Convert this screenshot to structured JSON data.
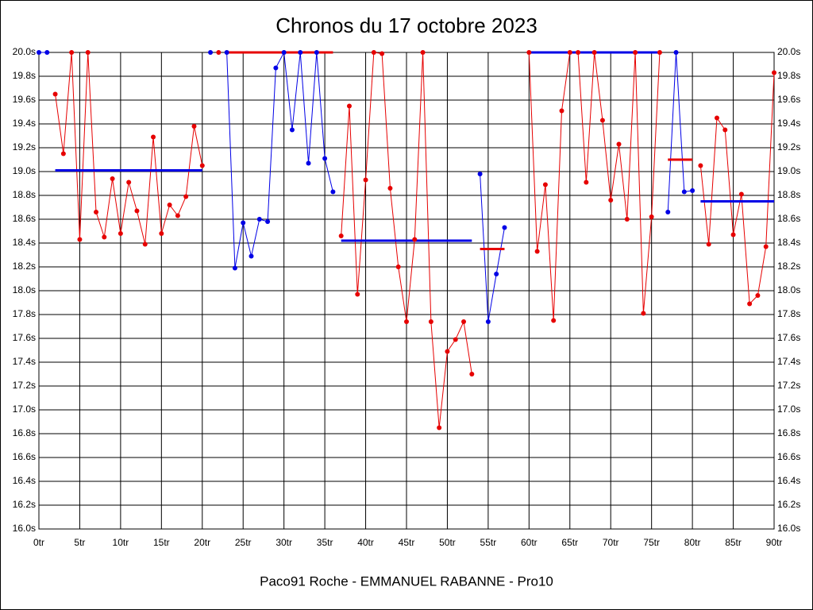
{
  "chart_data": {
    "type": "line",
    "title": "Chronos du 17 octobre 2023",
    "x_label": "Paco91 Roche - EMMANUEL RABANNE - Pro10",
    "x": [
      0,
      1,
      2,
      3,
      4,
      5,
      6,
      7,
      8,
      9,
      10,
      11,
      12,
      13,
      14,
      15,
      16,
      17,
      18,
      19,
      20,
      21,
      22,
      23,
      24,
      25,
      26,
      27,
      28,
      29,
      30,
      31,
      32,
      33,
      34,
      35,
      36,
      37,
      38,
      39,
      40,
      41,
      42,
      43,
      44,
      45,
      46,
      47,
      48,
      49,
      50,
      51,
      52,
      53,
      54,
      55,
      56,
      57,
      58,
      59,
      60,
      61,
      62,
      63,
      64,
      65,
      66,
      67,
      68,
      69,
      70,
      71,
      72,
      73,
      74,
      75,
      76,
      77,
      78,
      79,
      80,
      81,
      82,
      83,
      84,
      85,
      86,
      87,
      88,
      89,
      90
    ],
    "series": [
      {
        "color": "#0000e6",
        "values": [
          20,
          20,
          null,
          null,
          null,
          null,
          null,
          null,
          null,
          null,
          null,
          null,
          null,
          null,
          null,
          null,
          null,
          null,
          null,
          null,
          null,
          20,
          null,
          20,
          18.19,
          18.57,
          18.29,
          18.6,
          18.58,
          19.87,
          20,
          19.35,
          20,
          19.07,
          20,
          19.11,
          18.83,
          null,
          null,
          null,
          null,
          null,
          null,
          null,
          null,
          null,
          null,
          null,
          null,
          null,
          null,
          null,
          null,
          null,
          18.98,
          17.74,
          18.14,
          18.53,
          null,
          null,
          null,
          null,
          null,
          null,
          null,
          null,
          null,
          null,
          null,
          null,
          null,
          null,
          null,
          null,
          null,
          null,
          null,
          18.66,
          20,
          18.83,
          18.84,
          null,
          null,
          null,
          null,
          null,
          null,
          null,
          null,
          null,
          null
        ]
      },
      {
        "color": "#e60000",
        "values": [
          null,
          null,
          19.65,
          19.15,
          20,
          18.43,
          20,
          18.66,
          18.45,
          18.94,
          18.48,
          18.91,
          18.67,
          18.39,
          19.29,
          18.48,
          18.72,
          18.63,
          18.79,
          19.38,
          19.05,
          null,
          20,
          null,
          null,
          null,
          null,
          null,
          null,
          null,
          null,
          null,
          null,
          null,
          null,
          null,
          null,
          18.46,
          19.55,
          17.97,
          18.93,
          20,
          19.99,
          18.86,
          18.2,
          17.74,
          18.43,
          20,
          17.74,
          16.85,
          17.49,
          17.59,
          17.74,
          17.3,
          null,
          null,
          null,
          null,
          null,
          null,
          20,
          18.33,
          18.89,
          17.75,
          19.51,
          20,
          20,
          18.91,
          20,
          19.43,
          18.76,
          19.23,
          18.6,
          20,
          17.81,
          18.62,
          20,
          null,
          null,
          null,
          null,
          19.05,
          18.39,
          19.45,
          19.35,
          18.47,
          18.81,
          17.89,
          17.96,
          18.37,
          19.83
        ]
      }
    ],
    "averages": [
      {
        "start": 2,
        "end": 20,
        "value": 19.01,
        "color": "#0000e6"
      },
      {
        "start": 23,
        "end": 36,
        "value": 20,
        "color": "#e60000"
      },
      {
        "start": 37,
        "end": 53,
        "value": 18.42,
        "color": "#0000e6"
      },
      {
        "start": 54,
        "end": 57,
        "value": 18.35,
        "color": "#e60000"
      },
      {
        "start": 60,
        "end": 76,
        "value": 20,
        "color": "#0000e6"
      },
      {
        "start": 77,
        "end": 80,
        "value": 19.1,
        "color": "#e60000"
      },
      {
        "start": 81,
        "end": 90,
        "value": 18.75,
        "color": "#0000e6"
      }
    ],
    "xlim": [
      0,
      90
    ],
    "xticks": [
      {
        "value": 0,
        "label": "0tr"
      },
      {
        "value": 5,
        "label": "5tr"
      },
      {
        "value": 10,
        "label": "10tr"
      },
      {
        "value": 15,
        "label": "15tr"
      },
      {
        "value": 20,
        "label": "20tr"
      },
      {
        "value": 25,
        "label": "25tr"
      },
      {
        "value": 30,
        "label": "30tr"
      },
      {
        "value": 35,
        "label": "35tr"
      },
      {
        "value": 40,
        "label": "40tr"
      },
      {
        "value": 45,
        "label": "45tr"
      },
      {
        "value": 50,
        "label": "50tr"
      },
      {
        "value": 55,
        "label": "55tr"
      },
      {
        "value": 60,
        "label": "60tr"
      },
      {
        "value": 65,
        "label": "65tr"
      },
      {
        "value": 70,
        "label": "70tr"
      },
      {
        "value": 75,
        "label": "75tr"
      },
      {
        "value": 80,
        "label": "80tr"
      },
      {
        "value": 85,
        "label": "85tr"
      },
      {
        "value": 90,
        "label": "90tr"
      }
    ],
    "ylim": [
      16,
      20
    ],
    "yticks": [
      {
        "value": 16,
        "label": "16.0s"
      },
      {
        "value": 16.2,
        "label": "16.2s"
      },
      {
        "value": 16.4,
        "label": "16.4s"
      },
      {
        "value": 16.6,
        "label": "16.6s"
      },
      {
        "value": 16.8,
        "label": "16.8s"
      },
      {
        "value": 17,
        "label": "17.0s"
      },
      {
        "value": 17.2,
        "label": "17.2s"
      },
      {
        "value": 17.4,
        "label": "17.4s"
      },
      {
        "value": 17.6,
        "label": "17.6s"
      },
      {
        "value": 17.8,
        "label": "17.8s"
      },
      {
        "value": 18,
        "label": "18.0s"
      },
      {
        "value": 18.2,
        "label": "18.2s"
      },
      {
        "value": 18.4,
        "label": "18.4s"
      },
      {
        "value": 18.6,
        "label": "18.6s"
      },
      {
        "value": 18.8,
        "label": "18.8s"
      },
      {
        "value": 19,
        "label": "19.0s"
      },
      {
        "value": 19.2,
        "label": "19.2s"
      },
      {
        "value": 19.4,
        "label": "19.4s"
      },
      {
        "value": 19.6,
        "label": "19.6s"
      },
      {
        "value": 19.8,
        "label": "19.8s"
      },
      {
        "value": 20,
        "label": "20.0s"
      }
    ],
    "grid": true
  }
}
